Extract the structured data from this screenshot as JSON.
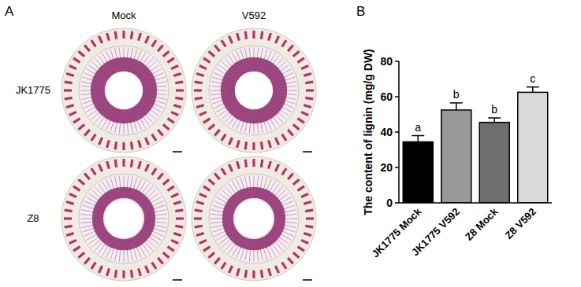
{
  "panel_a": {
    "label": "A",
    "columns": [
      "Mock",
      "V592"
    ],
    "rows": [
      "JK1775",
      "Z8"
    ]
  },
  "chart_data": {
    "type": "bar",
    "panel_label": "B",
    "y_label": "The content of lignin (mg/g DW)",
    "categories": [
      "JK1775 Mock",
      "JK1775 V592",
      "Z8 Mock",
      "Z8 V592"
    ],
    "values": [
      34.5,
      52.5,
      45.5,
      62.5
    ],
    "errors": [
      3.5,
      4,
      2.5,
      3
    ],
    "annotations": [
      "a",
      "b",
      "b",
      "c"
    ],
    "colors": [
      "#000000",
      "#999999",
      "#6e6e6e",
      "#d9d9d9"
    ],
    "ylim": [
      0,
      80
    ],
    "yticks": [
      0,
      20,
      40,
      60,
      80
    ],
    "grid": false
  }
}
